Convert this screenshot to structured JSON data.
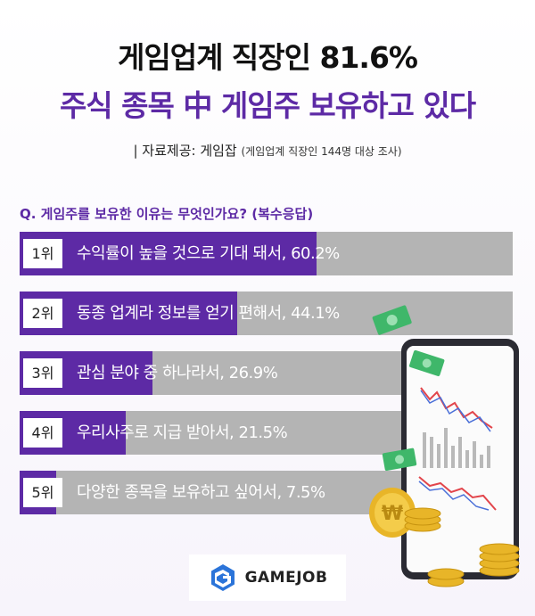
{
  "title_line1": "게임업계 직장인 81.6%",
  "title_line2": "주식 종목 中 게임주 보유하고 있다",
  "source": {
    "prefix": "| 자료제공: 게임잡",
    "note": "(게임업계 직장인 144명 대상 조사)"
  },
  "question": "Q. 게임주를 보유한 이유는 무엇인가요? (복수응답)",
  "chart_data": {
    "type": "bar",
    "orientation": "horizontal",
    "xlim": [
      0,
      100
    ],
    "categories": [
      "수익률이 높을 것으로 기대 돼서",
      "동종 업계라 정보를 얻기 편해서",
      "관심 분야 중 하나라서",
      "우리사주로 지급 받아서",
      "다양한 종목을 보유하고 싶어서"
    ],
    "values": [
      60.2,
      44.1,
      26.9,
      21.5,
      7.5
    ],
    "ranks": [
      "1위",
      "2위",
      "3위",
      "4위",
      "5위"
    ],
    "labels": [
      "수익률이 높을 것으로 기대 돼서, 60.2%",
      "동종 업계라 정보를 얻기 편해서, 44.1%",
      "관심 분야 중 하나라서, 26.9%",
      "우리사주로 지급 받아서, 21.5%",
      "다양한 종목을 보유하고 싶어서, 7.5%"
    ],
    "bar_color": "#5d2aa5",
    "track_color": "#b4b4b4"
  },
  "logo": {
    "text": "GAMEJOB",
    "icon": "gamejob-logo-icon"
  },
  "decor": {
    "phone": "smartphone-stock-chart-icon",
    "bills": "money-bill-icon",
    "coins": "gold-coin-icon"
  }
}
